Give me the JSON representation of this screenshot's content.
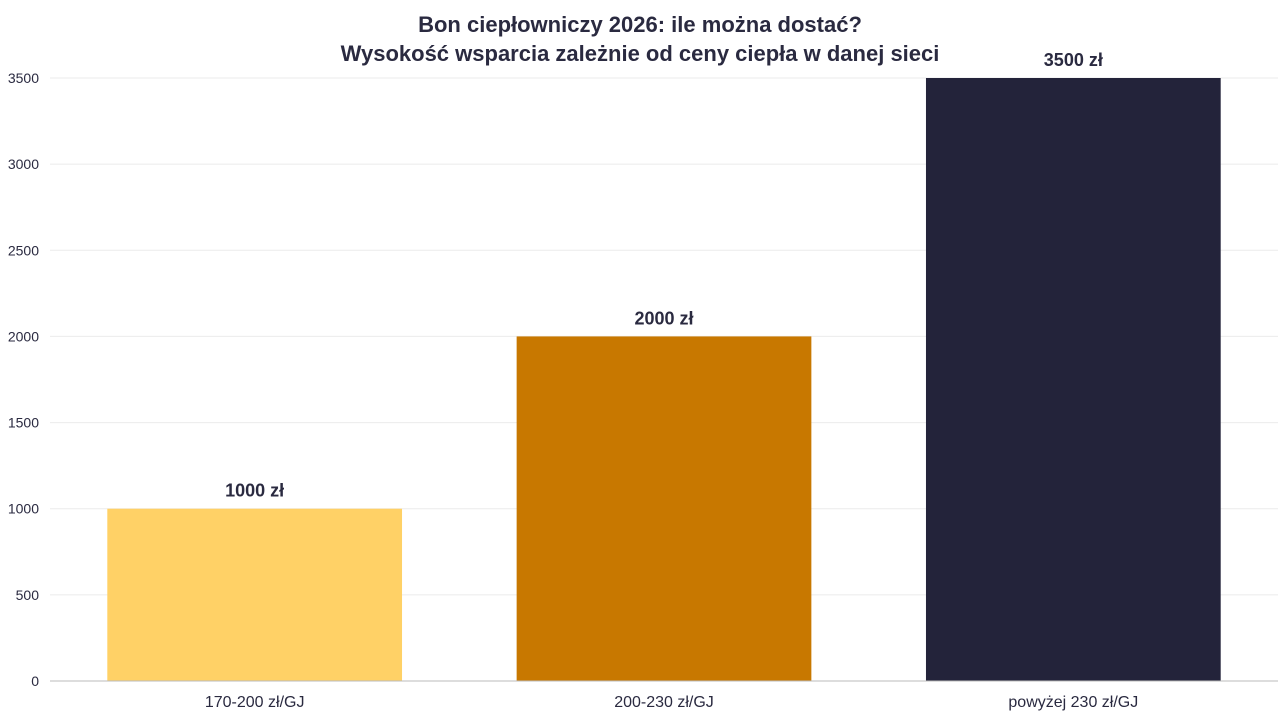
{
  "chart_data": {
    "type": "bar",
    "title": "Bon ciepłowniczy 2026: ile można dostać?",
    "subtitle": "Wysokość wsparcia zależnie od ceny ciepła w danej sieci",
    "xlabel": "",
    "ylabel": "",
    "categories": [
      "170-200 zł/GJ",
      "200-230 zł/GJ",
      "powyżej 230 zł/GJ"
    ],
    "values": [
      1000,
      2000,
      3500
    ],
    "data_labels": [
      "1000 zł",
      "2000 zł",
      "3500 zł"
    ],
    "bar_colors": [
      "#FFD166",
      "#C87800",
      "#23233A"
    ],
    "ylim": [
      0,
      3500
    ],
    "yticks": [
      0,
      500,
      1000,
      1500,
      2000,
      2500,
      3000,
      3500
    ],
    "grid": true,
    "legend": "none"
  },
  "colors": {
    "text": "#2A2A40",
    "grid": "#EBEBEB",
    "axis": "#BBBBBB",
    "background": "#FFFFFF"
  }
}
